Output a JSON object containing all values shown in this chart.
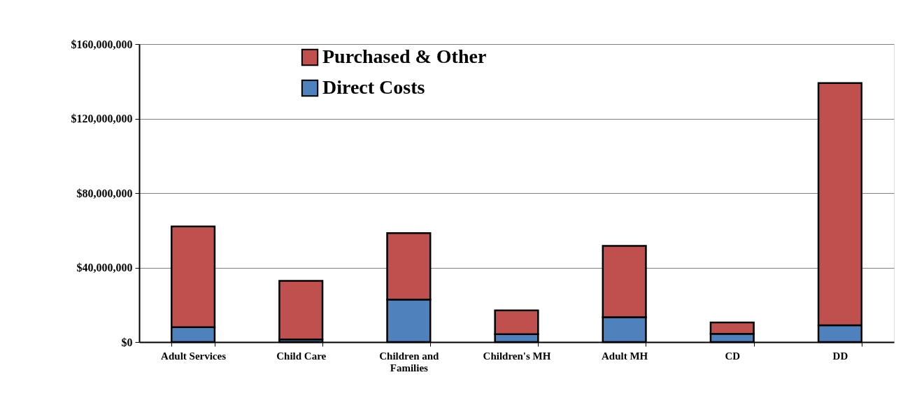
{
  "chart_data": {
    "type": "bar",
    "stacked": true,
    "categories": [
      "Adult Services",
      "Child Care",
      "Children and Families",
      "Children's MH",
      "Adult MH",
      "CD",
      "DD"
    ],
    "series": [
      {
        "name": "Direct Costs",
        "color": "#4f81bd",
        "values": [
          8000000,
          1400000,
          22800000,
          4200000,
          13300000,
          4400000,
          9000000
        ]
      },
      {
        "name": "Purchased & Other",
        "color": "#c0504d",
        "values": [
          54100000,
          31500000,
          35700000,
          12800000,
          38300000,
          6100000,
          130100000
        ]
      }
    ],
    "ylim": [
      0,
      160000000
    ],
    "yticks": [
      {
        "value": 0,
        "label": "$0"
      },
      {
        "value": 40000000,
        "label": "$40,000,000"
      },
      {
        "value": 80000000,
        "label": "$80,000,000"
      },
      {
        "value": 120000000,
        "label": "$120,000,000"
      },
      {
        "value": 160000000,
        "label": "$160,000,000"
      }
    ],
    "grid": "y",
    "legend": "top"
  }
}
